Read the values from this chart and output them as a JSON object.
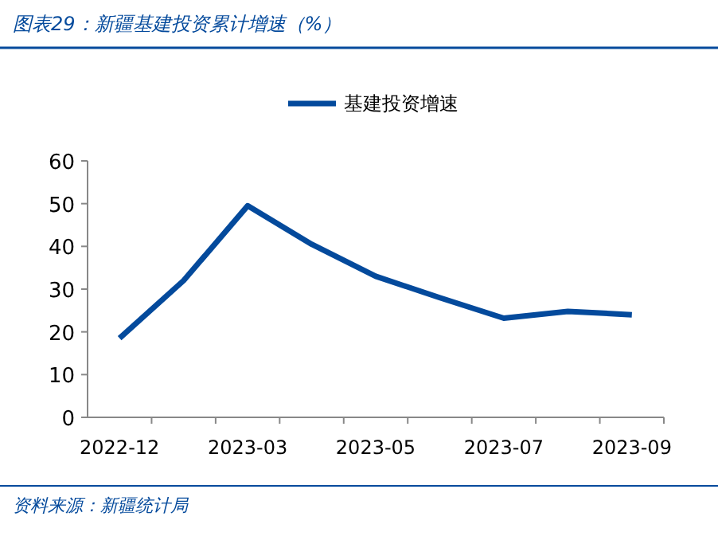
{
  "chart_data": {
    "type": "line",
    "title": "图表29：新疆基建投资累计增速（%）",
    "categories": [
      "2022-12",
      null,
      "2023-03",
      null,
      "2023-05",
      null,
      "2023-07",
      null,
      "2023-09"
    ],
    "series": [
      {
        "name": "基建投资增速",
        "color": "#044a9c",
        "values": [
          18.5,
          32,
          49.5,
          40.5,
          33,
          28,
          23.2,
          24.8,
          24
        ]
      }
    ],
    "ylim": [
      0,
      60
    ],
    "yticks": [
      0,
      10,
      20,
      30,
      40,
      50,
      60
    ],
    "legend": "top",
    "grid": false,
    "marker": "none",
    "line_style": "solid",
    "annotations": [
      "资料来源：新疆统计局"
    ]
  }
}
